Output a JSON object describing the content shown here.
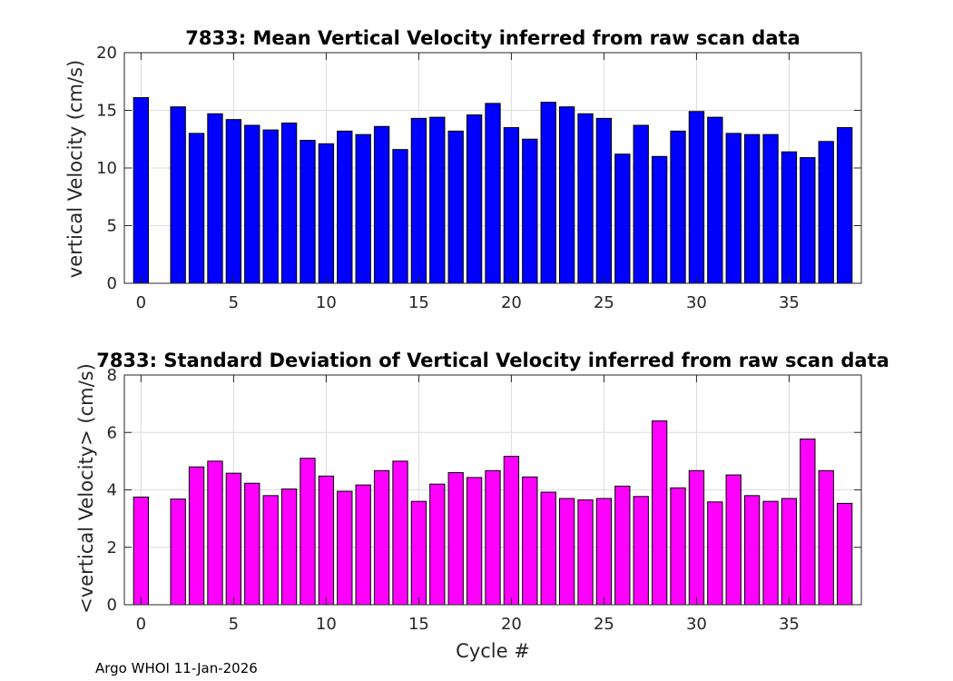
{
  "chart_data": [
    {
      "type": "bar",
      "title": "7833: Mean Vertical Velocity inferred from raw scan data",
      "xlabel": "",
      "ylabel": "vertical Velocity (cm/s)",
      "xlim": [
        -0.9,
        38.9
      ],
      "ylim": [
        0,
        20
      ],
      "xticks": [
        0,
        5,
        10,
        15,
        20,
        25,
        30,
        35
      ],
      "yticks": [
        0,
        5,
        10,
        15,
        20
      ],
      "grid": true,
      "bar_color": "#0000ff",
      "edge_color": "#000000",
      "x": [
        0,
        2,
        3,
        4,
        5,
        6,
        7,
        8,
        9,
        10,
        11,
        12,
        13,
        14,
        15,
        16,
        17,
        18,
        19,
        20,
        21,
        22,
        23,
        24,
        25,
        26,
        27,
        28,
        29,
        30,
        31,
        32,
        33,
        34,
        35,
        36,
        37,
        38
      ],
      "values": [
        16.1,
        15.3,
        13.0,
        14.7,
        14.2,
        13.7,
        13.3,
        13.9,
        12.4,
        12.1,
        13.2,
        12.9,
        13.6,
        11.6,
        14.3,
        14.4,
        13.2,
        14.6,
        15.6,
        13.5,
        12.5,
        15.7,
        15.3,
        14.7,
        14.3,
        11.2,
        13.7,
        11.0,
        13.2,
        14.9,
        14.4,
        13.0,
        12.9,
        12.9,
        11.4,
        10.9,
        12.3,
        13.5
      ]
    },
    {
      "type": "bar",
      "title": "7833: Standard Deviation of Vertical Velocity inferred from raw scan data",
      "xlabel": "Cycle #",
      "ylabel": "<vertical Velocity> (cm/s)",
      "xlim": [
        -0.9,
        38.9
      ],
      "ylim": [
        0,
        8
      ],
      "xticks": [
        0,
        5,
        10,
        15,
        20,
        25,
        30,
        35
      ],
      "yticks": [
        0,
        2,
        4,
        6,
        8
      ],
      "grid": true,
      "bar_color": "#ff00ff",
      "edge_color": "#000000",
      "x": [
        0,
        2,
        3,
        4,
        5,
        6,
        7,
        8,
        9,
        10,
        11,
        12,
        13,
        14,
        15,
        16,
        17,
        18,
        19,
        20,
        21,
        22,
        23,
        24,
        25,
        26,
        27,
        28,
        29,
        30,
        31,
        32,
        33,
        34,
        35,
        36,
        37,
        38
      ],
      "values": [
        3.75,
        3.68,
        4.8,
        5.0,
        4.58,
        4.23,
        3.8,
        4.03,
        5.1,
        4.48,
        3.95,
        4.17,
        4.67,
        5.0,
        3.6,
        4.2,
        4.6,
        4.43,
        4.67,
        5.17,
        4.45,
        3.92,
        3.7,
        3.65,
        3.7,
        4.13,
        3.77,
        6.4,
        4.07,
        4.67,
        3.58,
        4.52,
        3.8,
        3.6,
        3.7,
        5.77,
        4.67,
        3.53
      ]
    }
  ],
  "footer": {
    "text": "Argo WHOI 11-Jan-2026"
  }
}
